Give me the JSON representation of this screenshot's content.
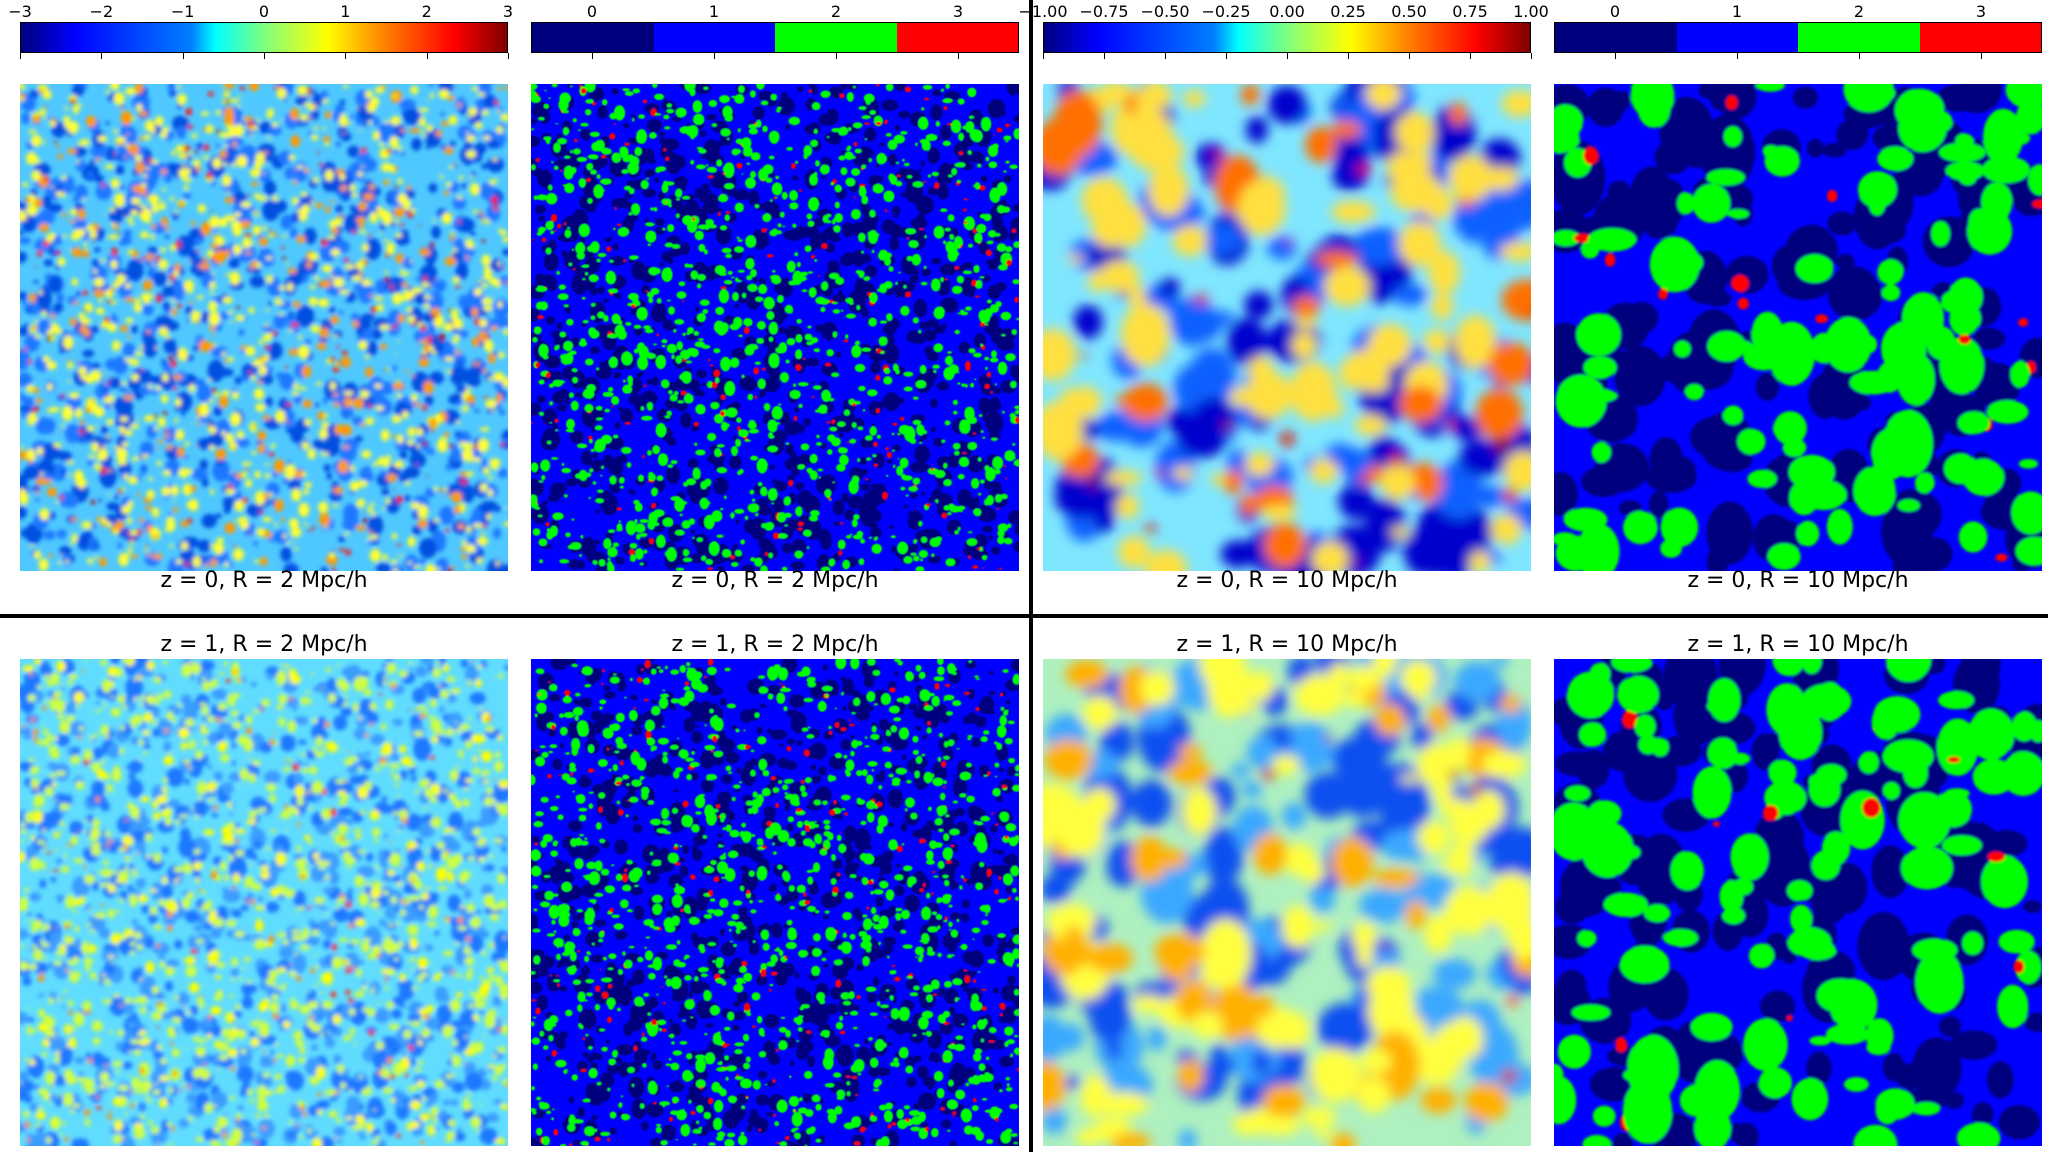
{
  "colorbars": [
    {
      "type": "continuous",
      "ticks": [
        "−3",
        "−2",
        "−1",
        "0",
        "1",
        "2",
        "3"
      ]
    },
    {
      "type": "discrete",
      "ticks": [
        "0",
        "1",
        "2",
        "3"
      ],
      "colors": [
        "#00007f",
        "#0000ff",
        "#00ff00",
        "#ff0000"
      ]
    },
    {
      "type": "continuous",
      "ticks": [
        "−1.00",
        "−0.75",
        "−0.50",
        "−0.25",
        "0.00",
        "0.25",
        "0.50",
        "0.75",
        "1.00"
      ]
    },
    {
      "type": "discrete",
      "ticks": [
        "0",
        "1",
        "2",
        "3"
      ],
      "colors": [
        "#00007f",
        "#0000ff",
        "#00ff00",
        "#ff0000"
      ]
    }
  ],
  "captions": {
    "r0c0": "z = 0, R = 2 Mpc/h",
    "r0c1": "z = 0, R = 2 Mpc/h",
    "r0c2": "z = 0, R = 10 Mpc/h",
    "r0c3": "z = 0, R = 10 Mpc/h",
    "r1c0": "z = 1, R = 2 Mpc/h",
    "r1c1": "z = 1, R = 2 Mpc/h",
    "r1c2": "z = 1, R = 10 Mpc/h",
    "r1c3": "z = 1, R = 10 Mpc/h"
  },
  "maps": [
    {
      "id": "r0c0",
      "style": "cont",
      "scale": "fine",
      "base": "#4fc8ff",
      "blob": [
        "#0050e0",
        "#1e78ff"
      ],
      "hot": [
        "#ffff30",
        "#ff9a00",
        "#ff1000",
        "#a00000"
      ]
    },
    {
      "id": "r0c1",
      "style": "disc",
      "scale": "fine",
      "base": "#0000ff",
      "blob": [
        "#00007f"
      ],
      "hot": [
        "#00ff00",
        "#00ff00",
        "#ff0000"
      ]
    },
    {
      "id": "r0c2",
      "style": "cont",
      "scale": "coarse",
      "base": "#7fe6ff",
      "blob": [
        "#0000cc",
        "#1060ff"
      ],
      "hot": [
        "#ffe040",
        "#ff7000",
        "#e01000",
        "#900000"
      ]
    },
    {
      "id": "r0c3",
      "style": "disc",
      "scale": "coarse",
      "base": "#0000ff",
      "blob": [
        "#00007f"
      ],
      "hot": [
        "#00ff00",
        "#00ff00",
        "#ff0000"
      ]
    },
    {
      "id": "r1c0",
      "style": "cont",
      "scale": "fine",
      "base": "#60dcff",
      "blob": [
        "#1c78ff",
        "#3a9cff"
      ],
      "hot": [
        "#d0ff40",
        "#ffff00",
        "#ff9000",
        "#ff2000"
      ]
    },
    {
      "id": "r1c1",
      "style": "disc",
      "scale": "fine",
      "base": "#0000ff",
      "blob": [
        "#00007f"
      ],
      "hot": [
        "#00ff00",
        "#00ff00",
        "#ff0000"
      ]
    },
    {
      "id": "r1c2",
      "style": "cont",
      "scale": "coarse",
      "base": "#aef0c0",
      "blob": [
        "#1050f0",
        "#3aa8ff"
      ],
      "hot": [
        "#ffff40",
        "#ffb000",
        "#ff5000",
        "#d02000"
      ]
    },
    {
      "id": "r1c3",
      "style": "disc",
      "scale": "coarse",
      "base": "#0000ff",
      "blob": [
        "#00007f"
      ],
      "hot": [
        "#00ff00",
        "#00ff00",
        "#ff0000"
      ]
    }
  ]
}
